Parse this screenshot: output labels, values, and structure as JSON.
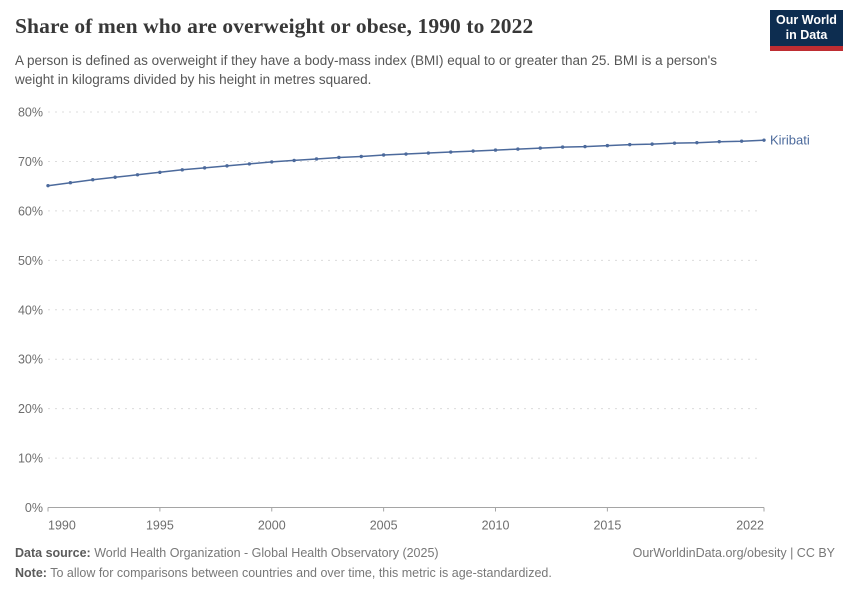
{
  "header": {
    "title": "Share of men who are overweight or obese, 1990 to 2022",
    "subtitle": "A person is defined as overweight if they have a body-mass index (BMI) equal to or greater than 25. BMI is a person's weight in kilograms divided by his height in metres squared.",
    "logo": {
      "line1": "Our World",
      "line2": "in Data",
      "bg_color": "#0d2d50",
      "accent_color": "#be2d32"
    }
  },
  "chart_data": {
    "type": "line",
    "title": "Share of men who are overweight or obese, 1990 to 2022",
    "x": [
      1990,
      1991,
      1992,
      1993,
      1994,
      1995,
      1996,
      1997,
      1998,
      1999,
      2000,
      2001,
      2002,
      2003,
      2004,
      2005,
      2006,
      2007,
      2008,
      2009,
      2010,
      2011,
      2012,
      2013,
      2014,
      2015,
      2016,
      2017,
      2018,
      2019,
      2020,
      2021,
      2022
    ],
    "series": [
      {
        "name": "Kiribati",
        "color": "#4C6A9C",
        "values": [
          65.1,
          65.7,
          66.3,
          66.8,
          67.3,
          67.8,
          68.3,
          68.7,
          69.1,
          69.5,
          69.9,
          70.2,
          70.5,
          70.8,
          71.0,
          71.3,
          71.5,
          71.7,
          71.9,
          72.1,
          72.3,
          72.5,
          72.7,
          72.9,
          73.0,
          73.2,
          73.4,
          73.5,
          73.7,
          73.8,
          74.0,
          74.1,
          74.3
        ]
      }
    ],
    "xlabel": "",
    "ylabel": "",
    "ylim": [
      0,
      80
    ],
    "yticks": [
      0,
      10,
      20,
      30,
      40,
      50,
      60,
      70,
      80
    ],
    "ytick_suffix": "%",
    "xticks": [
      1990,
      1995,
      2000,
      2005,
      2010,
      2015,
      2022
    ],
    "grid": "horizontal-dashed",
    "legend_position": "end-of-line-label",
    "marker": "dot"
  },
  "footer": {
    "datasource_label": "Data source:",
    "datasource_text": " World Health Organization - Global Health Observatory (2025)",
    "link": "OurWorldinData.org/obesity | CC BY",
    "note_label": "Note:",
    "note_text": " To allow for comparisons between countries and over time, this metric is age-standardized."
  }
}
